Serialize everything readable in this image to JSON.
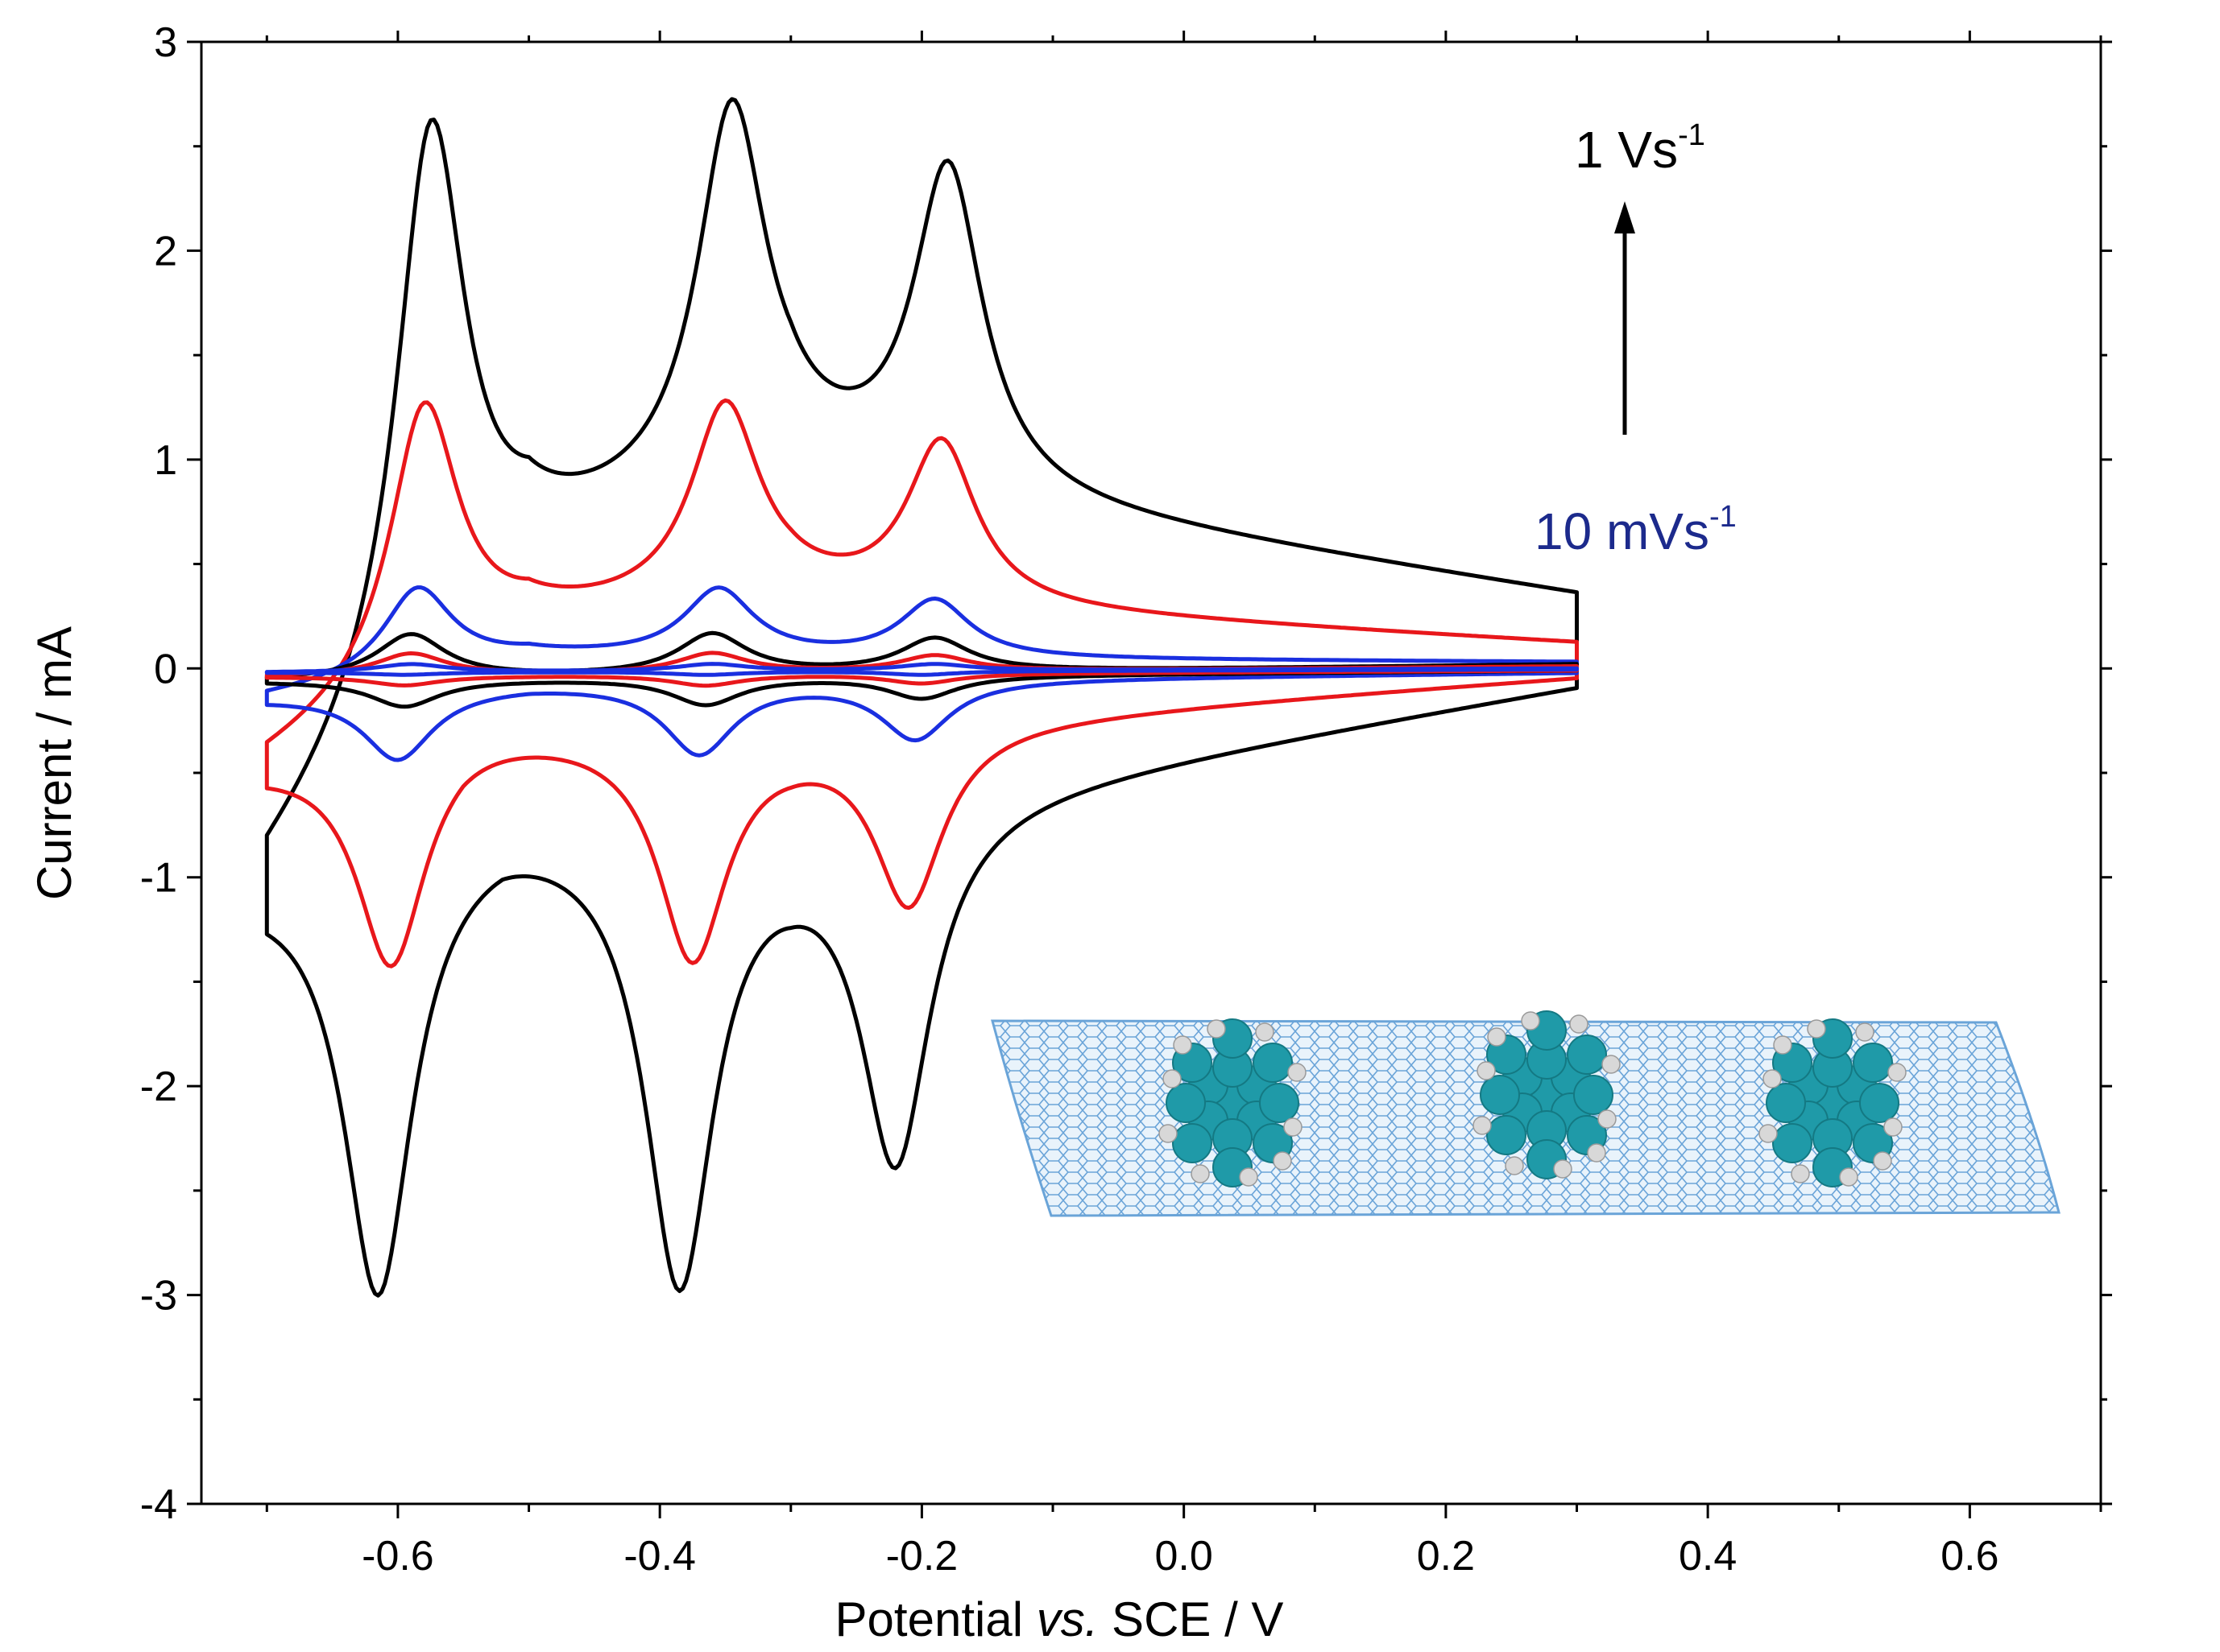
{
  "chart_data": {
    "type": "line",
    "xlabel_parts": [
      "Potential ",
      "vs.",
      " SCE / V"
    ],
    "ylabel": "Current / mA",
    "xlim": [
      -0.75,
      0.7
    ],
    "ylim": [
      -4,
      3
    ],
    "x_ticks": [
      "-0.6",
      "-0.4",
      "-0.2",
      "0.0",
      "0.2",
      "0.4",
      "0.6"
    ],
    "y_ticks": [
      "-4",
      "-3",
      "-2",
      "-1",
      "0",
      "1",
      "2",
      "3"
    ],
    "annotations": {
      "top_rate_base": "1 Vs",
      "top_rate_exp": "-1",
      "bottom_rate_base": "10 mVs",
      "bottom_rate_exp": "-1"
    },
    "grid": false,
    "legend": "none",
    "colors": {
      "black": "#000000",
      "red": "#e8171b",
      "blue": "#1a2fe0",
      "navy_label": "#1c2a8c",
      "nanotube": "#6aa4d8",
      "molecule_c": "#1f9aa8",
      "molecule_h": "#d8d8d8"
    },
    "series": [
      {
        "color": "#000000",
        "anodic_peaks": [
          [
            -0.575,
            2.58
          ],
          [
            -0.345,
            2.62
          ],
          [
            -0.18,
            2.35
          ]
        ],
        "cathodic_peaks": [
          [
            -0.615,
            -2.95
          ],
          [
            -0.385,
            -2.88
          ],
          [
            -0.22,
            -2.3
          ]
        ],
        "anodic_base": [
          [
            -0.7,
            -0.98
          ],
          [
            -0.5,
            0.52
          ],
          [
            -0.3,
            0.92
          ],
          [
            0.3,
            0.35
          ]
        ],
        "cathodic_base": [
          [
            0.3,
            -0.08
          ],
          [
            -0.3,
            -0.72
          ],
          [
            -0.52,
            -0.66
          ],
          [
            -0.7,
            -0.98
          ]
        ]
      },
      {
        "color": "#e8171b",
        "anodic_peaks": [
          [
            -0.58,
            1.25
          ],
          [
            -0.35,
            1.23
          ],
          [
            -0.185,
            1.06
          ]
        ],
        "cathodic_peaks": [
          [
            -0.605,
            -1.4
          ],
          [
            -0.375,
            -1.36
          ],
          [
            -0.21,
            -1.1
          ]
        ],
        "anodic_base": [
          [
            -0.7,
            -0.45
          ],
          [
            -0.5,
            0.2
          ],
          [
            -0.3,
            0.32
          ],
          [
            0.3,
            0.12
          ]
        ],
        "cathodic_base": [
          [
            0.3,
            -0.04
          ],
          [
            -0.3,
            -0.3
          ],
          [
            -0.55,
            -0.25
          ],
          [
            -0.7,
            -0.45
          ]
        ]
      },
      {
        "color": "#1a2fe0",
        "anodic_peaks": [
          [
            -0.585,
            0.38
          ],
          [
            -0.355,
            0.37
          ],
          [
            -0.19,
            0.32
          ]
        ],
        "cathodic_peaks": [
          [
            -0.6,
            -0.43
          ],
          [
            -0.37,
            -0.4
          ],
          [
            -0.205,
            -0.33
          ]
        ],
        "anodic_base": [
          [
            -0.7,
            -0.14
          ],
          [
            -0.5,
            0.05
          ],
          [
            0.3,
            0.03
          ]
        ],
        "cathodic_base": [
          [
            0.3,
            -0.02
          ],
          [
            -0.5,
            -0.07
          ],
          [
            -0.7,
            -0.14
          ]
        ]
      },
      {
        "color": "#000000",
        "anodic_peaks": [
          [
            -0.59,
            0.16
          ],
          [
            -0.36,
            0.16
          ],
          [
            -0.19,
            0.14
          ]
        ],
        "cathodic_peaks": [
          [
            -0.595,
            -0.18
          ],
          [
            -0.365,
            -0.17
          ],
          [
            -0.2,
            -0.14
          ]
        ],
        "anodic_base": [
          [
            -0.7,
            -0.06
          ],
          [
            0.3,
            0.02
          ]
        ],
        "cathodic_base": [
          [
            0.3,
            -0.01
          ],
          [
            -0.7,
            -0.06
          ]
        ]
      },
      {
        "color": "#e8171b",
        "anodic_peaks": [
          [
            -0.59,
            0.07
          ],
          [
            -0.36,
            0.07
          ],
          [
            -0.19,
            0.06
          ]
        ],
        "cathodic_peaks": [
          [
            -0.595,
            -0.08
          ],
          [
            -0.365,
            -0.08
          ],
          [
            -0.2,
            -0.07
          ]
        ],
        "anodic_base": [
          [
            -0.7,
            -0.04
          ],
          [
            0.3,
            0.01
          ]
        ],
        "cathodic_base": [
          [
            0.3,
            -0.01
          ],
          [
            -0.7,
            -0.04
          ]
        ]
      },
      {
        "color": "#1a2fe0",
        "anodic_peaks": [
          [
            -0.59,
            0.02
          ],
          [
            -0.36,
            0.02
          ],
          [
            -0.19,
            0.02
          ]
        ],
        "cathodic_peaks": [
          [
            -0.595,
            -0.03
          ],
          [
            -0.365,
            -0.03
          ],
          [
            -0.2,
            -0.03
          ]
        ],
        "anodic_base": [
          [
            -0.7,
            -0.02
          ],
          [
            0.3,
            0.0
          ]
        ],
        "cathodic_base": [
          [
            0.3,
            -0.005
          ],
          [
            -0.7,
            -0.02
          ]
        ]
      }
    ]
  }
}
